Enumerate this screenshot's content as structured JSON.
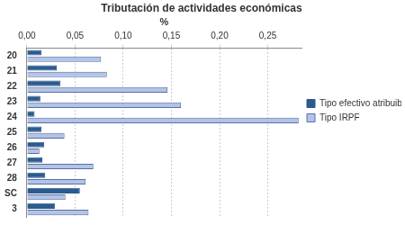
{
  "chart_data": {
    "type": "bar",
    "title": "Tributación de actividades económicas",
    "orientation": "horizontal",
    "xlabel": "%",
    "categories": [
      "20",
      "21",
      "22",
      "23",
      "24",
      "25",
      "26",
      "27",
      "28",
      "SC",
      "3"
    ],
    "series": [
      {
        "name": "Tipo efectivo atribuible",
        "color": "#2b5b8e",
        "values": [
          0.015,
          0.031,
          0.035,
          0.014,
          0.008,
          0.015,
          0.018,
          0.016,
          0.019,
          0.055,
          0.029
        ]
      },
      {
        "name": "Tipo IRPF",
        "color": "#b3c3e8",
        "values": [
          0.077,
          0.083,
          0.146,
          0.16,
          0.282,
          0.039,
          0.013,
          0.069,
          0.061,
          0.04,
          0.064
        ]
      }
    ],
    "xlim": [
      0,
      0.285
    ],
    "xticks": [
      {
        "value": 0,
        "label": "0,00"
      },
      {
        "value": 0.05,
        "label": "0,05"
      },
      {
        "value": 0.1,
        "label": "0,10"
      },
      {
        "value": 0.15,
        "label": "0,15"
      },
      {
        "value": 0.2,
        "label": "0,20"
      },
      {
        "value": 0.25,
        "label": "0,25"
      }
    ],
    "grid": true,
    "legend": "right"
  }
}
